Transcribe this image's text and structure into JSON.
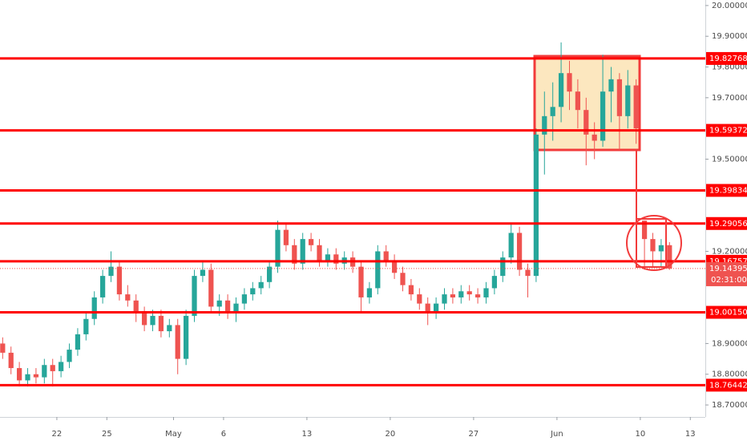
{
  "chart_data": {
    "type": "candlestick",
    "x": [
      -3.25,
      -2.75,
      -2.25,
      -1.75,
      -1.25,
      -0.75,
      -0.25,
      0.25,
      0.75,
      1.25,
      1.75,
      2.25,
      2.75,
      3.25,
      3.75,
      4.25,
      4.75,
      5.25,
      5.75,
      6.25,
      6.75,
      7.25,
      7.75,
      8.25,
      8.75,
      9.25,
      9.75,
      10.25,
      10.75,
      11.25,
      11.75,
      12.25,
      12.75,
      13.25,
      13.75,
      14.25,
      14.75,
      15.25,
      15.75,
      16.25,
      16.75,
      17.25,
      17.75,
      18.25,
      18.75,
      19.25,
      19.75,
      20.25,
      20.75,
      21.25,
      21.75,
      22.25,
      22.75,
      23.25,
      23.75,
      24.25,
      24.75,
      25.25,
      25.75,
      26.25,
      26.75,
      27.25,
      27.75,
      28.25,
      28.75,
      29.25,
      29.75,
      30.25,
      30.75,
      31.25,
      31.75,
      32.25,
      32.75,
      33.25,
      33.75,
      34.25,
      34.75,
      35.25,
      35.75,
      36.25,
      36.75
    ],
    "open": [
      18.9,
      18.87,
      18.82,
      18.78,
      18.8,
      18.79,
      18.83,
      18.81,
      18.84,
      18.88,
      18.93,
      18.98,
      19.05,
      19.12,
      19.15,
      19.06,
      19.04,
      19.0,
      18.96,
      18.99,
      18.94,
      18.96,
      18.85,
      18.99,
      19.12,
      19.14,
      19.02,
      19.04,
      19.0,
      19.03,
      19.06,
      19.08,
      19.1,
      19.15,
      19.27,
      19.22,
      19.16,
      19.24,
      19.22,
      19.17,
      19.19,
      19.16,
      19.18,
      19.15,
      19.05,
      19.08,
      19.2,
      19.17,
      19.13,
      19.09,
      19.06,
      19.03,
      19.0,
      19.03,
      19.06,
      19.05,
      19.07,
      19.06,
      19.05,
      19.08,
      19.12,
      19.18,
      19.26,
      19.14,
      19.12,
      19.58,
      19.64,
      19.67,
      19.78,
      19.72,
      19.66,
      19.58,
      19.56,
      19.72,
      19.76,
      19.64,
      19.74,
      19.3,
      19.24,
      19.2,
      19.22
    ],
    "high": [
      18.92,
      18.89,
      18.84,
      18.82,
      18.82,
      18.85,
      18.85,
      18.86,
      18.9,
      18.95,
      19.0,
      19.07,
      19.14,
      19.2,
      19.17,
      19.09,
      19.06,
      19.02,
      19.01,
      19.01,
      18.98,
      18.98,
      19.01,
      19.14,
      19.17,
      19.16,
      19.06,
      19.06,
      19.05,
      19.08,
      19.1,
      19.12,
      19.17,
      19.3,
      19.29,
      19.24,
      19.26,
      19.26,
      19.24,
      19.21,
      19.21,
      19.2,
      19.2,
      19.17,
      19.1,
      19.22,
      19.22,
      19.19,
      19.15,
      19.11,
      19.08,
      19.05,
      19.05,
      19.08,
      19.08,
      19.09,
      19.09,
      19.08,
      19.1,
      19.14,
      19.2,
      19.29,
      19.28,
      19.16,
      19.6,
      19.72,
      19.75,
      19.88,
      19.82,
      19.76,
      19.7,
      19.62,
      19.84,
      19.8,
      19.78,
      19.79,
      19.76,
      19.3,
      19.26,
      19.24,
      19.23
    ],
    "low": [
      18.85,
      18.8,
      18.76,
      18.76,
      18.77,
      18.77,
      18.76,
      18.79,
      18.82,
      18.86,
      18.91,
      18.96,
      19.03,
      19.1,
      19.04,
      19.02,
      18.97,
      18.94,
      18.94,
      18.92,
      18.92,
      18.8,
      18.83,
      18.97,
      19.1,
      19.0,
      18.99,
      18.98,
      18.97,
      19.01,
      19.04,
      19.06,
      19.08,
      19.13,
      19.2,
      19.14,
      19.14,
      19.2,
      19.15,
      19.15,
      19.14,
      19.14,
      19.13,
      19.0,
      19.03,
      19.06,
      19.15,
      19.11,
      19.07,
      19.04,
      19.01,
      18.96,
      18.98,
      19.01,
      19.03,
      19.03,
      19.04,
      19.03,
      19.03,
      19.06,
      19.1,
      19.16,
      19.12,
      19.05,
      19.1,
      19.45,
      19.56,
      19.62,
      19.66,
      19.6,
      19.48,
      19.5,
      19.54,
      19.62,
      19.53,
      19.6,
      19.55,
      19.14,
      19.15,
      19.15,
      19.14
    ],
    "close": [
      18.87,
      18.82,
      18.78,
      18.8,
      18.79,
      18.83,
      18.81,
      18.84,
      18.88,
      18.93,
      18.98,
      19.05,
      19.12,
      19.15,
      19.06,
      19.04,
      19.0,
      18.96,
      18.99,
      18.94,
      18.96,
      18.85,
      18.99,
      19.12,
      19.14,
      19.02,
      19.04,
      19.0,
      19.03,
      19.06,
      19.08,
      19.1,
      19.15,
      19.27,
      19.22,
      19.16,
      19.24,
      19.22,
      19.17,
      19.19,
      19.16,
      19.18,
      19.15,
      19.05,
      19.08,
      19.2,
      19.17,
      19.13,
      19.09,
      19.06,
      19.03,
      19.0,
      19.03,
      19.06,
      19.05,
      19.07,
      19.06,
      19.05,
      19.08,
      19.12,
      19.18,
      19.26,
      19.14,
      19.12,
      19.58,
      19.64,
      19.67,
      19.78,
      19.72,
      19.66,
      19.58,
      19.56,
      19.72,
      19.76,
      19.64,
      19.74,
      19.6,
      19.24,
      19.2,
      19.22,
      19.14395
    ],
    "up_color": "#26a69a",
    "down_color": "#ef5350",
    "level_color": "#ff0000",
    "xlim": [
      -3.41,
      38.9
    ],
    "ylim": [
      18.661,
      20.018
    ],
    "xticks": [
      {
        "value": 0,
        "label": "22"
      },
      {
        "value": 3,
        "label": "25"
      },
      {
        "value": 7,
        "label": "May"
      },
      {
        "value": 10,
        "label": "6"
      },
      {
        "value": 15,
        "label": "13"
      },
      {
        "value": 20,
        "label": "20"
      },
      {
        "value": 25,
        "label": "27"
      },
      {
        "value": 30,
        "label": "Jun"
      },
      {
        "value": 35,
        "label": "10"
      },
      {
        "value": 38,
        "label": "13"
      }
    ],
    "yticks": [
      {
        "value": 20.0,
        "label": "20.00000"
      },
      {
        "value": 19.9,
        "label": "19.90000"
      },
      {
        "value": 19.8,
        "label": "19.80000"
      },
      {
        "value": 19.7,
        "label": "19.70000"
      },
      {
        "value": 19.5,
        "label": "19.50000"
      },
      {
        "value": 19.2,
        "label": "19.20000"
      },
      {
        "value": 18.9,
        "label": "18.90000"
      },
      {
        "value": 18.8,
        "label": "18.80000"
      },
      {
        "value": 18.7,
        "label": "18.70000"
      }
    ],
    "levels": [
      {
        "value": 19.82768,
        "label": "19.82768"
      },
      {
        "value": 19.59372,
        "label": "19.59372"
      },
      {
        "value": 19.39834,
        "label": "19.39834"
      },
      {
        "value": 19.29056,
        "label": "19.29056"
      },
      {
        "value": 19.16757,
        "label": "19.16757"
      },
      {
        "value": 19.0015,
        "label": "19.00150"
      },
      {
        "value": 18.76442,
        "label": "18.76442"
      }
    ],
    "last_price": {
      "value": 19.14395,
      "label": "19.14395"
    },
    "countdown": "02:31:00"
  }
}
